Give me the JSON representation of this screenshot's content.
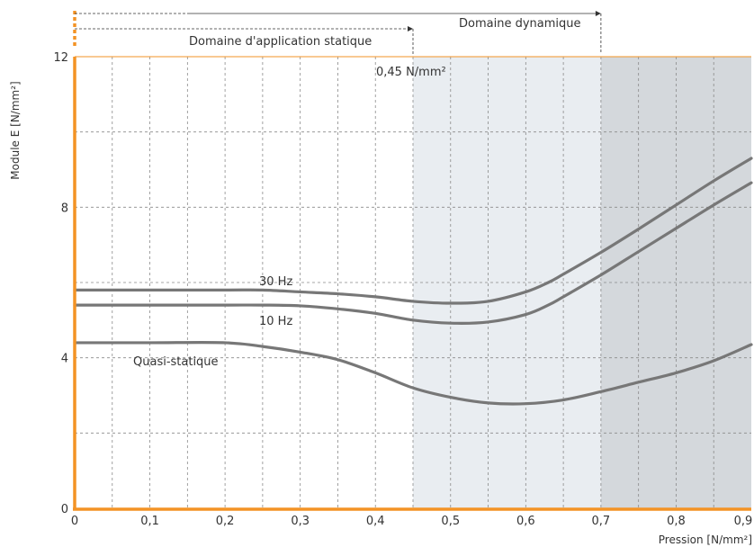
{
  "chart_data": {
    "type": "line",
    "title": "",
    "xlabel": "Pression [N/mm²]",
    "ylabel": "Module E [N/mm²]",
    "xlim": [
      0,
      0.9
    ],
    "ylim": [
      0,
      12
    ],
    "x_ticks": [
      0,
      0.1,
      0.2,
      0.3,
      0.4,
      0.5,
      0.6,
      0.7,
      0.8,
      0.9
    ],
    "x_tick_labels": [
      "0",
      "0,1",
      "0,2",
      "0,3",
      "0,4",
      "0,5",
      "0,6",
      "0,7",
      "0,8",
      "0,9"
    ],
    "y_ticks": [
      0,
      4,
      8,
      12
    ],
    "y_tick_labels": [
      "0",
      "4",
      "8",
      "12"
    ],
    "grid": true,
    "regions": [
      {
        "from": 0.45,
        "to": 0.7,
        "color": "#e9edf1"
      },
      {
        "from": 0.7,
        "to": 0.9,
        "color": "#d4d8dc"
      }
    ],
    "domains": [
      {
        "label": "Domaine d'application statique",
        "from": 0,
        "to": 0.45
      },
      {
        "label": "Domaine dynamique",
        "from": 0,
        "to": 0.7
      }
    ],
    "annotation": "0,45 N/mm²",
    "series": [
      {
        "name": "30 Hz",
        "x": [
          0,
          0.1,
          0.2,
          0.25,
          0.3,
          0.35,
          0.4,
          0.45,
          0.5,
          0.55,
          0.6,
          0.63,
          0.65,
          0.7,
          0.75,
          0.8,
          0.85,
          0.9
        ],
        "y": [
          5.8,
          5.8,
          5.8,
          5.8,
          5.75,
          5.7,
          5.62,
          5.5,
          5.45,
          5.5,
          5.75,
          6.0,
          6.22,
          6.8,
          7.42,
          8.06,
          8.7,
          9.3
        ]
      },
      {
        "name": "10 Hz",
        "x": [
          0,
          0.1,
          0.2,
          0.25,
          0.3,
          0.35,
          0.4,
          0.45,
          0.5,
          0.55,
          0.6,
          0.63,
          0.65,
          0.7,
          0.75,
          0.8,
          0.85,
          0.9
        ],
        "y": [
          5.4,
          5.4,
          5.4,
          5.4,
          5.38,
          5.3,
          5.18,
          5.0,
          4.92,
          4.95,
          5.15,
          5.4,
          5.62,
          6.2,
          6.82,
          7.44,
          8.06,
          8.65
        ]
      },
      {
        "name": "Quasi-statique",
        "x": [
          0,
          0.1,
          0.2,
          0.25,
          0.3,
          0.35,
          0.4,
          0.45,
          0.5,
          0.55,
          0.6,
          0.65,
          0.7,
          0.75,
          0.8,
          0.85,
          0.9
        ],
        "y": [
          4.4,
          4.4,
          4.4,
          4.3,
          4.15,
          3.95,
          3.6,
          3.2,
          2.95,
          2.8,
          2.78,
          2.88,
          3.1,
          3.35,
          3.6,
          3.92,
          4.35
        ]
      }
    ],
    "colors": {
      "line": "#777777",
      "axis": "#f39325",
      "grid": "#8a8a8a"
    }
  }
}
